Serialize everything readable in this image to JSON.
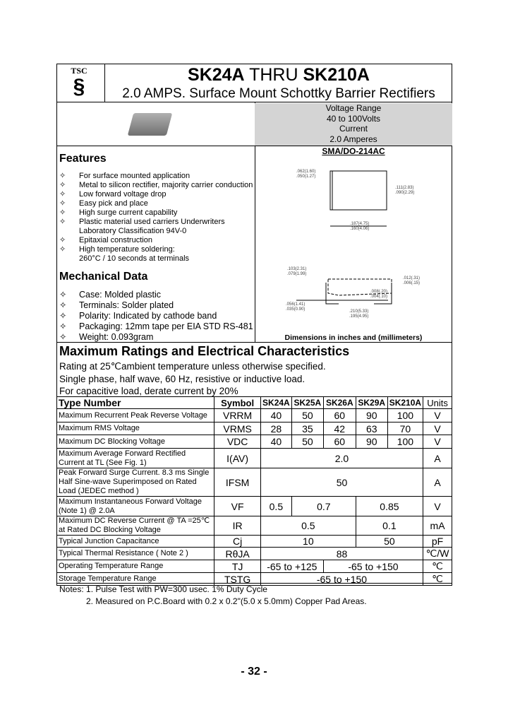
{
  "logo": {
    "text": "TSC"
  },
  "header": {
    "title_a": "SK24A",
    "title_mid": " THRU ",
    "title_b": "SK210A",
    "subtitle": "2.0 AMPS. Surface Mount Schottky Barrier Rectifiers"
  },
  "spec": [
    "Voltage Range",
    "40 to 100Volts",
    "Current",
    "2.0 Amperes"
  ],
  "package": {
    "name": "SMA/DO-214AC",
    "caption": "Dimensions in inches and (millimeters)",
    "dims": [
      ".062(1.60)",
      ".050(1.27)",
      ".111(2.83)",
      ".090(2.29)",
      ".187(4.75)",
      ".160(4.06)",
      ".103(2.31)",
      ".079(1.99)",
      ".012(.31)",
      ".006(.15)",
      ".008(.20)",
      ".004(.10)",
      ".056(1.41)",
      ".035(0.90)",
      ".210(5.33)",
      ".195(4.95)"
    ]
  },
  "features": {
    "title": "Features",
    "items": [
      "For surface mounted application",
      "Metal to silicon rectifier, majority carrier conduction",
      "Low forward voltage drop",
      "Easy pick and place",
      "High surge current capability",
      "Plastic material used carriers Underwriters",
      "Laboratory Classification 94V-0",
      "Epitaxial construction",
      "High temperature soldering:",
      "260°C / 10 seconds at terminals"
    ]
  },
  "mechanical": {
    "title": "Mechanical Data",
    "items": [
      "Case: Molded plastic",
      "Terminals: Solder plated",
      "Polarity: Indicated by cathode band",
      "Packaging: 12mm tape per EIA STD RS-481",
      "Weight: 0.093gram"
    ]
  },
  "ratings": {
    "title": "Maximum Ratings and Electrical Characteristics",
    "lines": [
      "Rating at 25℃ambient temperature unless otherwise specified.",
      "Single phase, half wave, 60 Hz, resistive or inductive load.",
      "For capacitive load, derate current by 20%"
    ]
  },
  "table": {
    "headers": [
      "Type Number",
      "Symbol",
      "SK24A",
      "SK25A",
      "SK26A",
      "SK29A",
      "SK210A",
      "Units"
    ],
    "rows": [
      {
        "param": "Maximum Recurrent Peak Reverse Voltage",
        "symbol": "VRRM",
        "values": [
          "40",
          "50",
          "60",
          "90",
          "100"
        ],
        "unit": "V"
      },
      {
        "param": "Maximum RMS Voltage",
        "symbol": "VRMS",
        "values": [
          "28",
          "35",
          "42",
          "63",
          "70"
        ],
        "unit": "V"
      },
      {
        "param": "Maximum DC Blocking Voltage",
        "symbol": "VDC",
        "values": [
          "40",
          "50",
          "60",
          "90",
          "100"
        ],
        "unit": "V"
      },
      {
        "param": "Maximum Average Forward Rectified Current at TL (See Fig. 1)",
        "symbol": "I(AV)",
        "values": [
          "2.0"
        ],
        "unit": "A"
      },
      {
        "param": "Peak Forward Surge Current. 8.3 ms Single Half Sine-wave Superimposed on Rated Load (JEDEC method )",
        "symbol": "IFSM",
        "values": [
          "50"
        ],
        "unit": "A"
      },
      {
        "param": "Maximum Instantaneous Forward Voltage (Note 1) @ 2.0A",
        "symbol": "VF",
        "values": [
          "0.5",
          "0.7",
          "0.85"
        ],
        "unit": "V"
      },
      {
        "param": "Maximum DC Reverse Current @ TA =25℃ at Rated DC Blocking Voltage",
        "symbol": "IR",
        "values": [
          "0.5",
          "0.1"
        ],
        "unit": "mA"
      },
      {
        "param": "Typical Junction Capacitance",
        "symbol": "Cj",
        "values": [
          "10",
          "50"
        ],
        "unit": "pF"
      },
      {
        "param": "Typical Thermal Resistance ( Note 2 )",
        "symbol": "RθJA",
        "values": [
          "88"
        ],
        "unit": "℃/W"
      },
      {
        "param": "Operating Temperature Range",
        "symbol": "TJ",
        "values": [
          "-65 to +125",
          "-65 to +150"
        ],
        "unit": "℃"
      },
      {
        "param": "Storage Temperature Range",
        "symbol": "TSTG",
        "values": [
          "-65 to +150"
        ],
        "unit": "℃"
      }
    ]
  },
  "notes": [
    "Notes: 1. Pulse Test with PW=300 usec. 1% Duty Cycle",
    "2. Measured on P.C.Board with 0.2 x 0.2\"(5.0 x 5.0mm) Copper Pad Areas."
  ],
  "page_number": "- 32 -"
}
